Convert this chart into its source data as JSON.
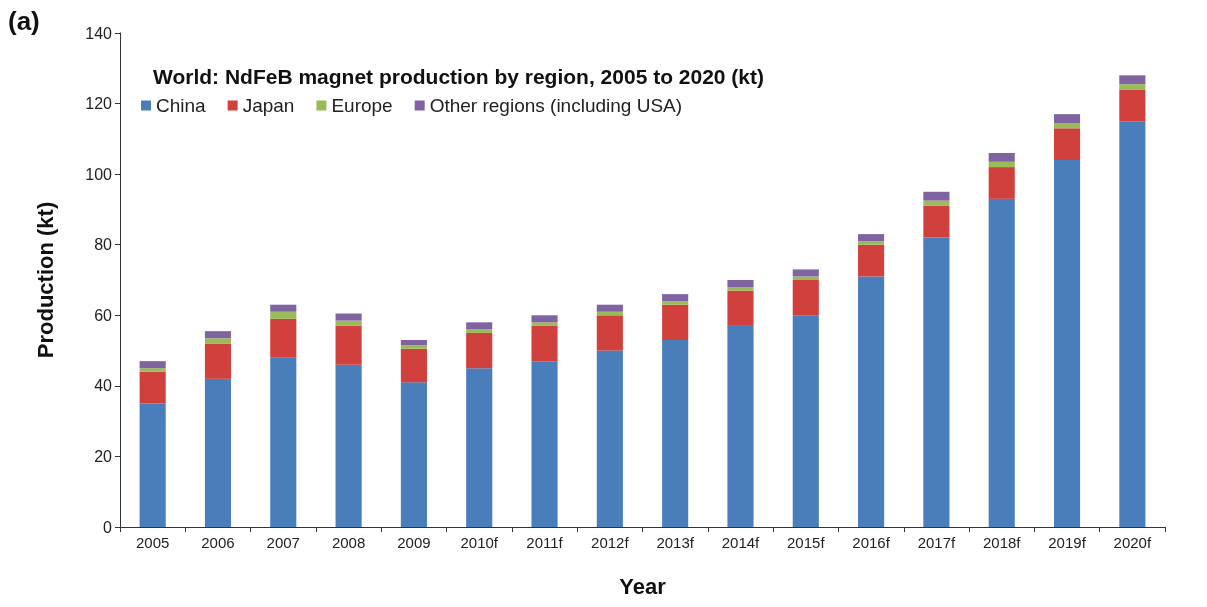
{
  "chart_data": {
    "type": "bar",
    "title": "World: NdFeB magnet production by region, 2005 to 2020 (kt)",
    "xlabel": "Year",
    "ylabel": "Production (kt)",
    "annotations": [
      "(a)"
    ],
    "categories": [
      "2005",
      "2006",
      "2007",
      "2008",
      "2009",
      "2010f",
      "2011f",
      "2012f",
      "2013f",
      "2014f",
      "2015f",
      "2016f",
      "2017f",
      "2018f",
      "2019f",
      "2020f"
    ],
    "stacked": true,
    "series": [
      {
        "name": "China",
        "color": "#4a7ebb",
        "values": [
          35,
          42,
          48,
          46,
          41,
          45,
          47,
          50,
          53,
          57,
          60,
          71,
          82,
          93,
          104,
          115
        ]
      },
      {
        "name": "Japan",
        "color": "#d0413e",
        "values": [
          9,
          10,
          11,
          11,
          9.5,
          10,
          10,
          10,
          10,
          10,
          10,
          9,
          9,
          9,
          9,
          9
        ]
      },
      {
        "name": "Europe",
        "color": "#9bbb59",
        "values": [
          1,
          1.5,
          2,
          1.5,
          1,
          1,
          1,
          1,
          1,
          1,
          1,
          1,
          1.5,
          1.5,
          1.5,
          1.5
        ]
      },
      {
        "name": "Other regions (including USA)",
        "color": "#8064a2",
        "values": [
          2,
          2,
          2,
          2,
          1.5,
          2,
          2,
          2,
          2,
          2,
          2,
          2,
          2.5,
          2.5,
          2.5,
          2.5
        ]
      }
    ],
    "ylim": [
      0,
      140
    ],
    "yticks": [
      0,
      20,
      40,
      60,
      80,
      100,
      120,
      140
    ],
    "grid": false,
    "legend": "top left"
  }
}
